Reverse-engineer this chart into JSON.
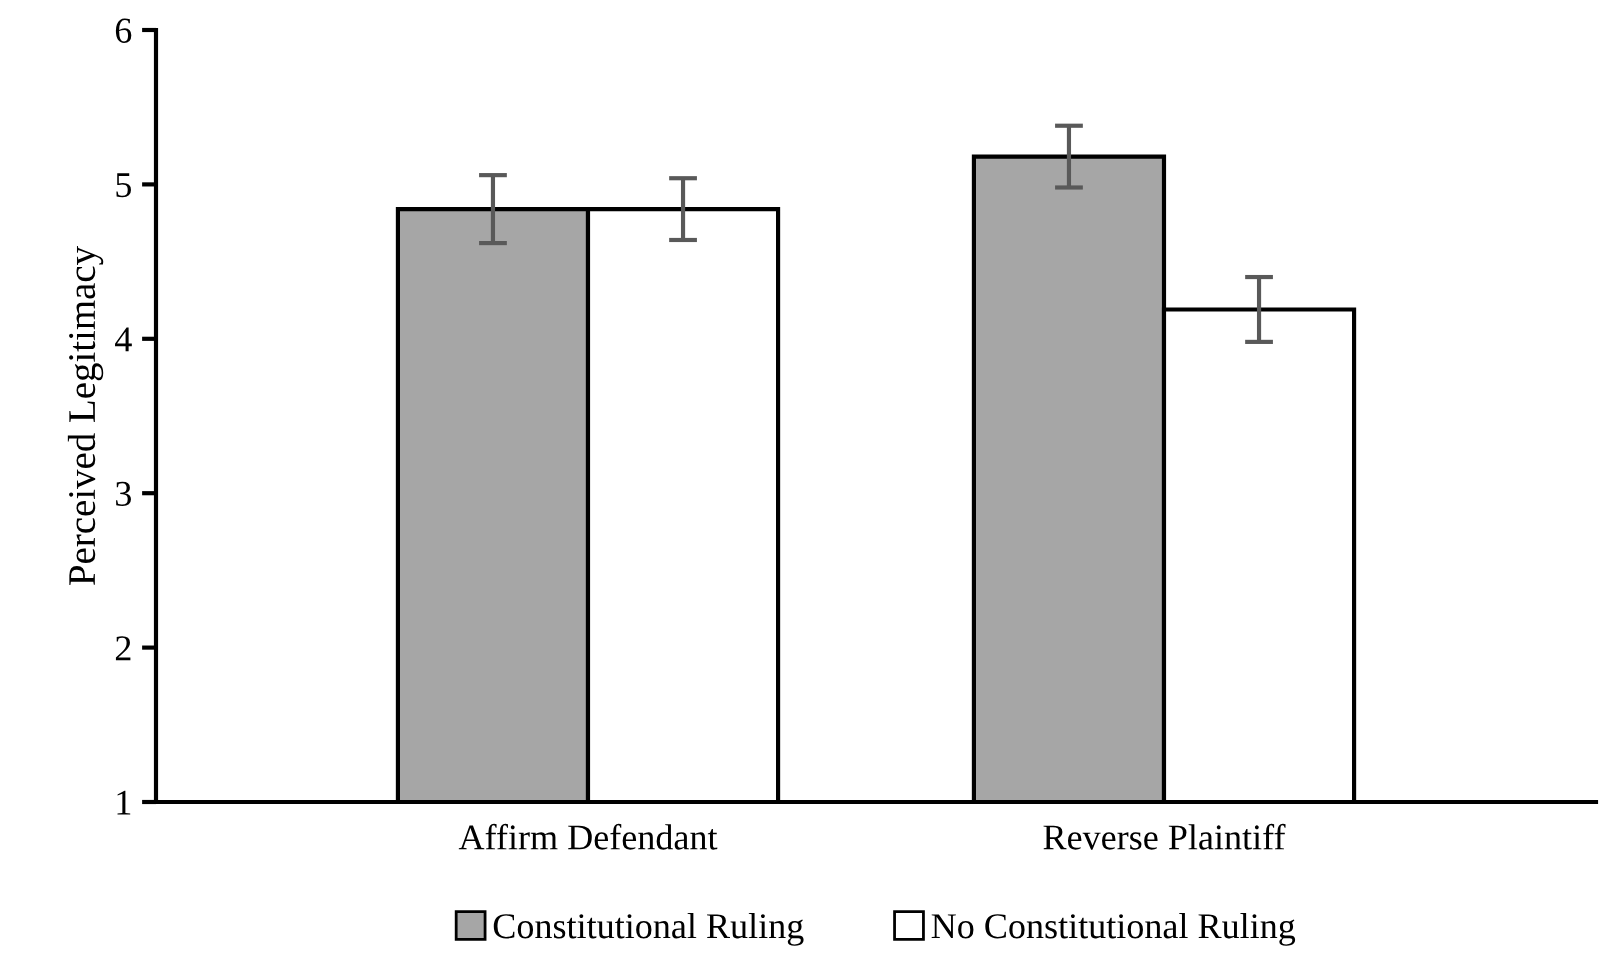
{
  "chart_data": {
    "type": "bar",
    "ylabel": "Perceived Legitimacy",
    "categories": [
      "Affirm Defendant",
      "Reverse Plaintiff"
    ],
    "series": [
      {
        "name": "Constitutional Ruling",
        "color": "#a6a6a6",
        "values": [
          4.84,
          5.18
        ],
        "errors": [
          0.22,
          0.2
        ]
      },
      {
        "name": "No Constitutional Ruling",
        "color": "#ffffff",
        "values": [
          4.84,
          4.19
        ],
        "errors": [
          0.2,
          0.21
        ]
      }
    ],
    "ylim": [
      1,
      6
    ],
    "yticks": [
      1,
      2,
      3,
      4,
      5,
      6
    ],
    "grid": false,
    "legend": "bottom"
  }
}
